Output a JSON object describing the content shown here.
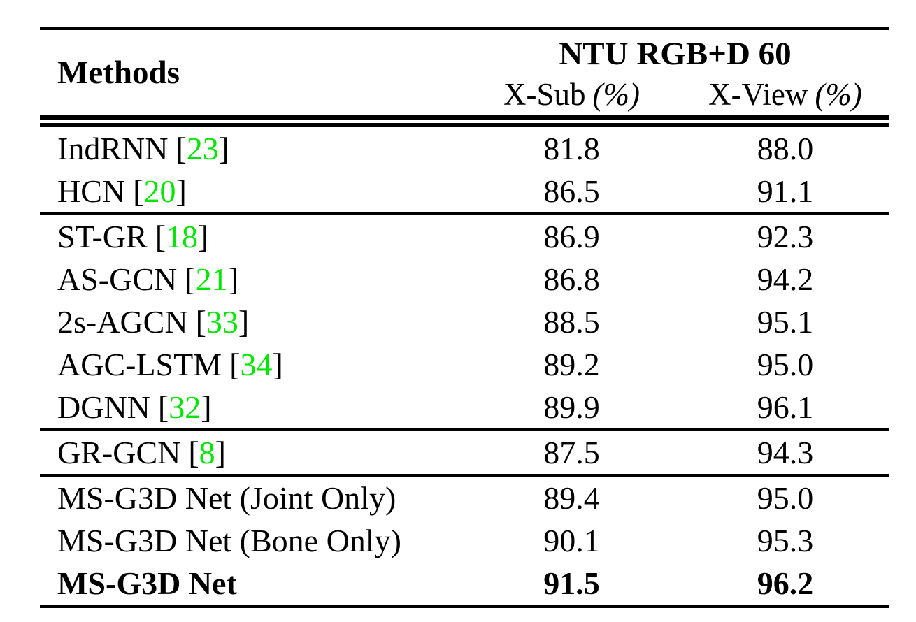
{
  "page": {
    "background_color": "#ffffff",
    "citation_color": "#00e600",
    "text_color": "#000000"
  },
  "table": {
    "methods_header": "Methods",
    "dataset_header": "NTU RGB+D 60",
    "columns": [
      {
        "label": "X-Sub",
        "unit": "(%)"
      },
      {
        "label": "X-View",
        "unit": "(%)"
      }
    ],
    "rows": [
      {
        "method": "IndRNN",
        "cite": "23",
        "xsub": "81.8",
        "xview": "88.0"
      },
      {
        "method": "HCN",
        "cite": "20",
        "xsub": "86.5",
        "xview": "91.1"
      },
      {
        "method": "ST-GR",
        "cite": "18",
        "xsub": "86.9",
        "xview": "92.3"
      },
      {
        "method": "AS-GCN",
        "cite": "21",
        "xsub": "86.8",
        "xview": "94.2"
      },
      {
        "method": "2s-AGCN",
        "cite": "33",
        "xsub": "88.5",
        "xview": "95.1"
      },
      {
        "method": "AGC-LSTM",
        "cite": "34",
        "xsub": "89.2",
        "xview": "95.0"
      },
      {
        "method": "DGNN",
        "cite": "32",
        "xsub": "89.9",
        "xview": "96.1"
      },
      {
        "method": "GR-GCN",
        "cite": "8",
        "xsub": "87.5",
        "xview": "94.3"
      },
      {
        "method": "MS-G3D Net (Joint Only)",
        "xsub": "89.4",
        "xview": "95.0"
      },
      {
        "method": "MS-G3D Net (Bone Only)",
        "xsub": "90.1",
        "xview": "95.3"
      },
      {
        "method": "MS-G3D Net",
        "xsub": "91.5",
        "xview": "96.2"
      }
    ]
  },
  "chart_data": {
    "type": "table",
    "title": "NTU RGB+D 60",
    "columns": [
      "Methods",
      "X-Sub (%)",
      "X-View (%)"
    ],
    "rows": [
      [
        "IndRNN [23]",
        81.8,
        88.0
      ],
      [
        "HCN [20]",
        86.5,
        91.1
      ],
      [
        "ST-GR [18]",
        86.9,
        92.3
      ],
      [
        "AS-GCN [21]",
        86.8,
        94.2
      ],
      [
        "2s-AGCN [33]",
        88.5,
        95.1
      ],
      [
        "AGC-LSTM [34]",
        89.2,
        95.0
      ],
      [
        "DGNN [32]",
        89.9,
        96.1
      ],
      [
        "GR-GCN [8]",
        87.5,
        94.3
      ],
      [
        "MS-G3D Net (Joint Only)",
        89.4,
        95.0
      ],
      [
        "MS-G3D Net (Bone Only)",
        90.1,
        95.3
      ],
      [
        "MS-G3D Net",
        91.5,
        96.2
      ]
    ]
  }
}
